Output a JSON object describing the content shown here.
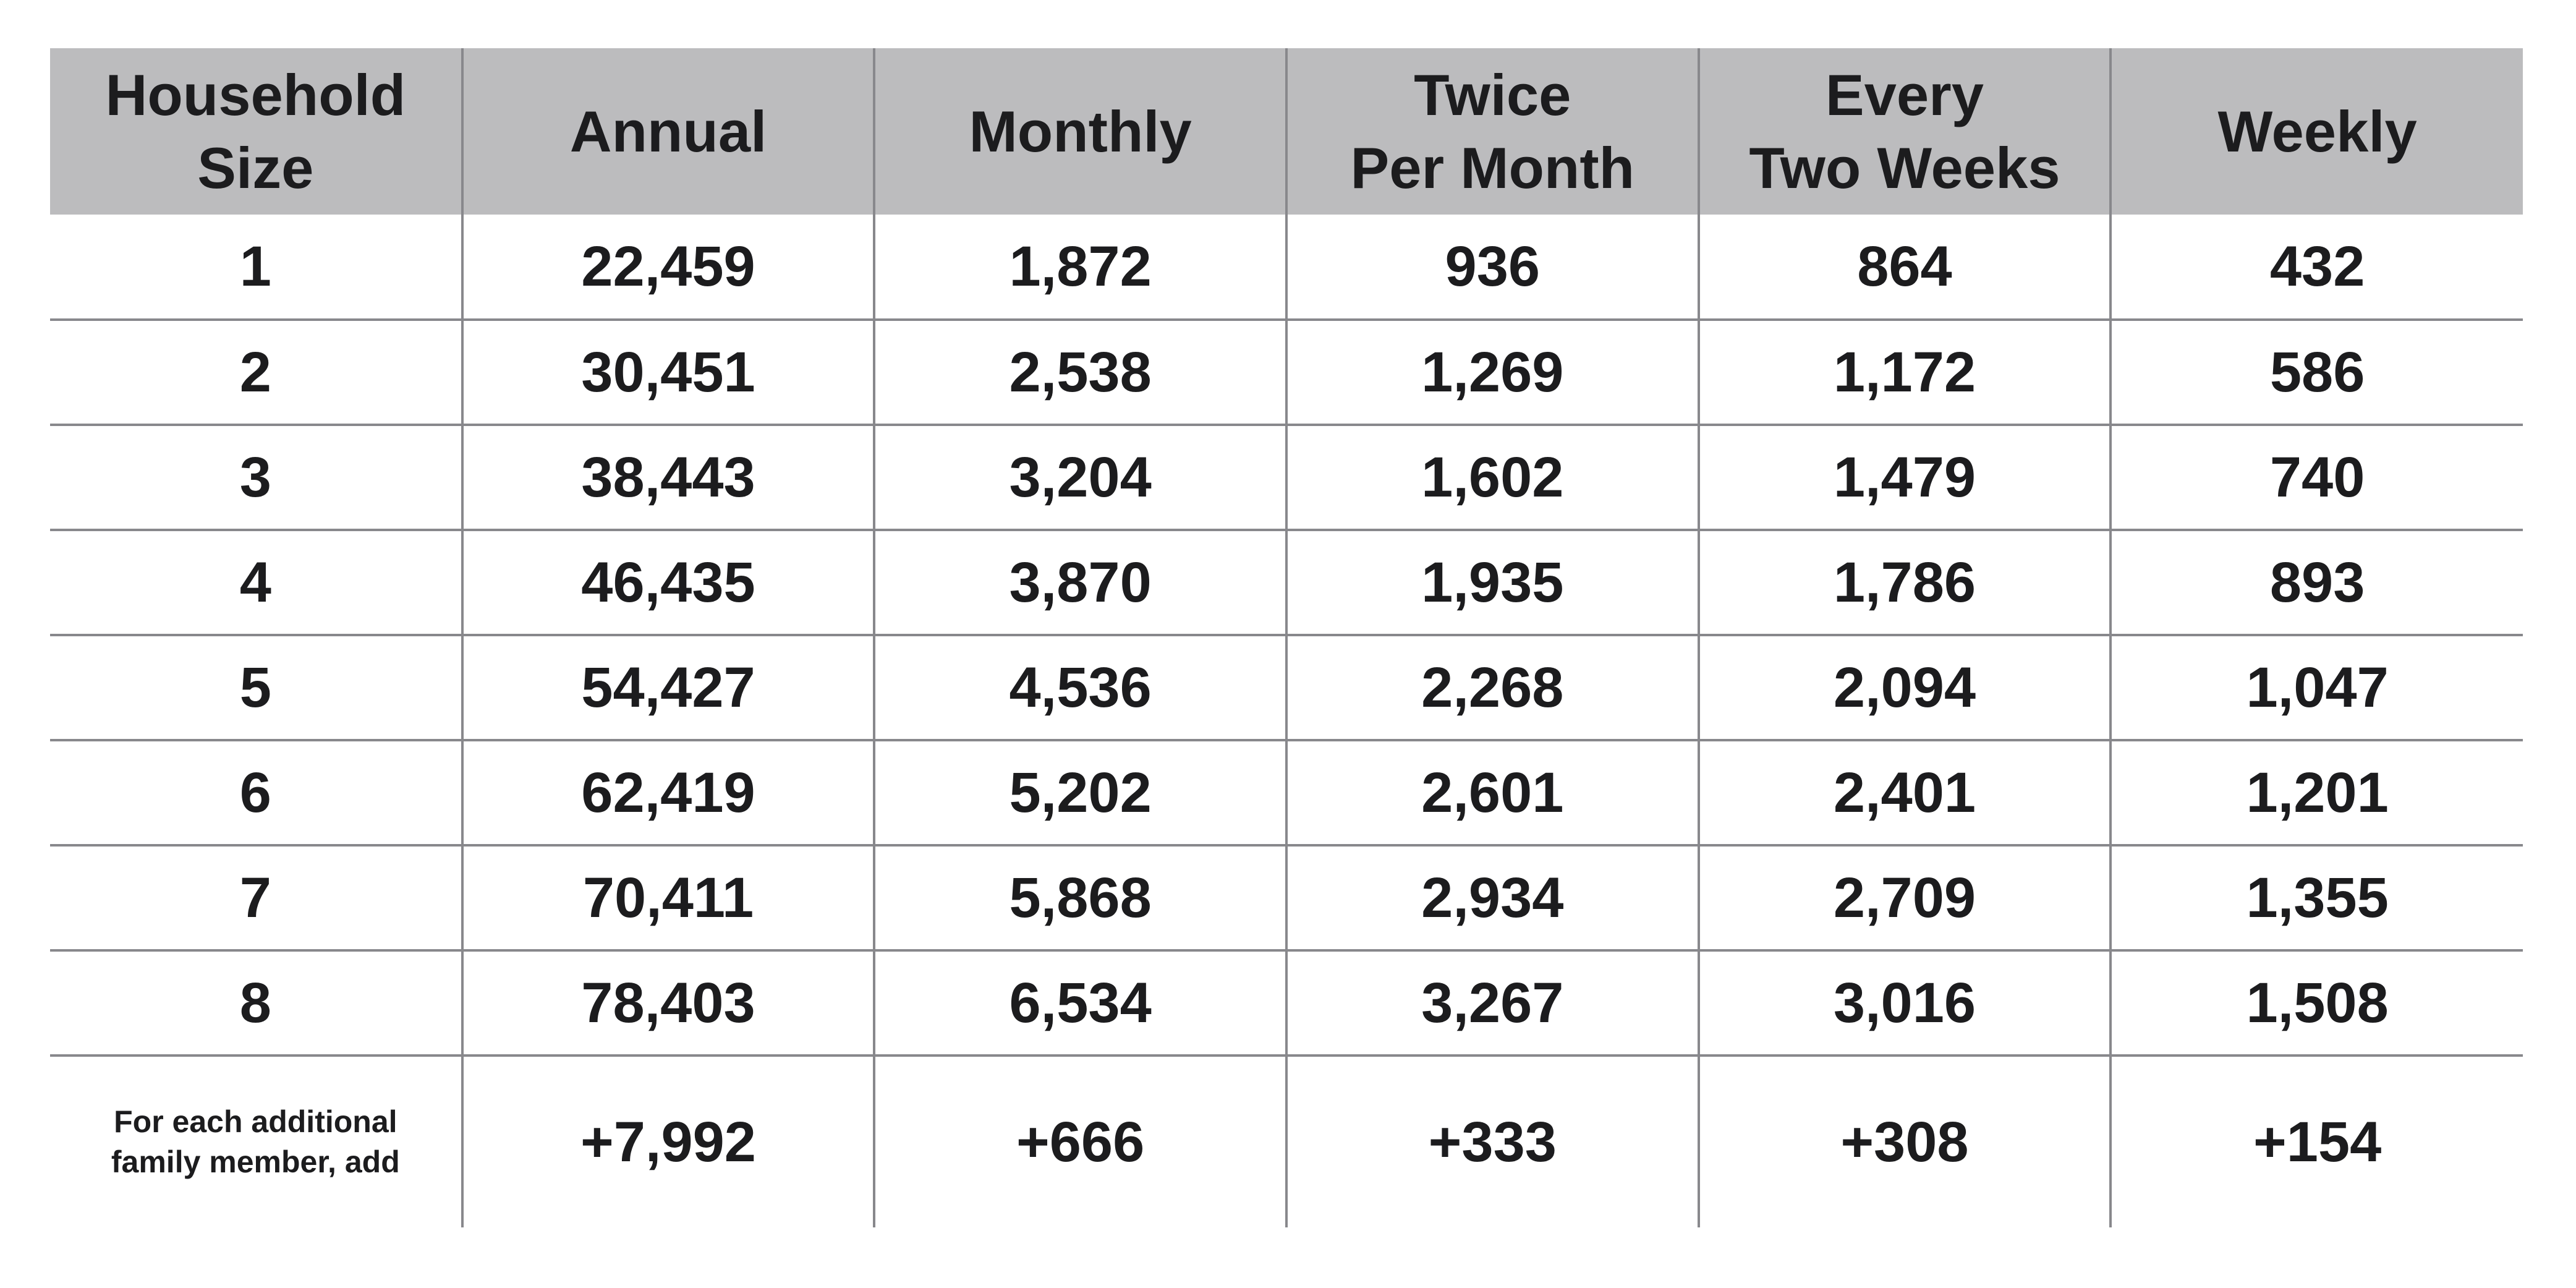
{
  "table": {
    "columns": [
      "Household\nSize",
      "Annual",
      "Monthly",
      "Twice\nPer Month",
      "Every\nTwo Weeks",
      "Weekly"
    ],
    "rows": [
      {
        "label": "1",
        "values": [
          "22,459",
          "1,872",
          "936",
          "864",
          "432"
        ],
        "addendum": false
      },
      {
        "label": "2",
        "values": [
          "30,451",
          "2,538",
          "1,269",
          "1,172",
          "586"
        ],
        "addendum": false
      },
      {
        "label": "3",
        "values": [
          "38,443",
          "3,204",
          "1,602",
          "1,479",
          "740"
        ],
        "addendum": false
      },
      {
        "label": "4",
        "values": [
          "46,435",
          "3,870",
          "1,935",
          "1,786",
          "893"
        ],
        "addendum": false
      },
      {
        "label": "5",
        "values": [
          "54,427",
          "4,536",
          "2,268",
          "2,094",
          "1,047"
        ],
        "addendum": false
      },
      {
        "label": "6",
        "values": [
          "62,419",
          "5,202",
          "2,601",
          "2,401",
          "1,201"
        ],
        "addendum": false
      },
      {
        "label": "7",
        "values": [
          "70,411",
          "5,868",
          "2,934",
          "2,709",
          "1,355"
        ],
        "addendum": false
      },
      {
        "label": "8",
        "values": [
          "78,403",
          "6,534",
          "3,267",
          "3,016",
          "1,508"
        ],
        "addendum": false
      },
      {
        "label": "For each additional\nfamily member, add",
        "values": [
          "+7,992",
          "+666",
          "+333",
          "+308",
          "+154"
        ],
        "addendum": true
      }
    ],
    "colors": {
      "header_bg": "#bcbcbe",
      "grid_line": "#88888c",
      "text": "#1c1c1e",
      "background": "#ffffff"
    }
  }
}
